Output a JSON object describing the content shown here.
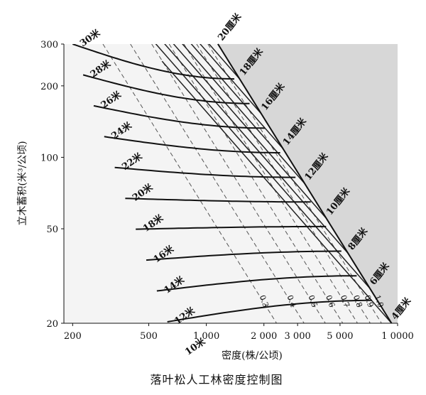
{
  "chart_data": {
    "type": "line",
    "title": "落叶松人工林密度控制图",
    "xlabel": "密度(株/公顷)",
    "ylabel": "立木蓄积(米³/公顷)",
    "xscale": "log",
    "yscale": "log",
    "xlim": [
      180,
      10000
    ],
    "ylim": [
      20,
      300
    ],
    "x_ticks": [
      {
        "value": 200,
        "label": "200"
      },
      {
        "value": 500,
        "label": "500"
      },
      {
        "value": 1000,
        "label": "1 000"
      },
      {
        "value": 2000,
        "label": "2 000"
      },
      {
        "value": 3000,
        "label": "3 000"
      },
      {
        "value": 5000,
        "label": "5 000"
      },
      {
        "value": 10000,
        "label": "1 0000"
      }
    ],
    "y_ticks": [
      {
        "value": 20,
        "label": "20"
      },
      {
        "value": 50,
        "label": "50"
      },
      {
        "value": 100,
        "label": "100"
      },
      {
        "value": 200,
        "label": "200"
      },
      {
        "value": 300,
        "label": "300"
      }
    ],
    "height_curves": [
      {
        "label": "30米",
        "H": 30
      },
      {
        "label": "28米",
        "H": 28
      },
      {
        "label": "26米",
        "H": 26
      },
      {
        "label": "24米",
        "H": 24
      },
      {
        "label": "22米",
        "H": 22
      },
      {
        "label": "20米",
        "H": 20
      },
      {
        "label": "18米",
        "H": 18
      },
      {
        "label": "16米",
        "H": 16
      },
      {
        "label": "14米",
        "H": 14
      },
      {
        "label": "12米",
        "H": 12
      },
      {
        "label": "10米",
        "H": 10
      }
    ],
    "diameter_lines": [
      {
        "label": "20厘米",
        "D": 20
      },
      {
        "label": "18厘米",
        "D": 18
      },
      {
        "label": "16厘米",
        "D": 16
      },
      {
        "label": "14厘米",
        "D": 14
      },
      {
        "label": "12厘米",
        "D": 12
      },
      {
        "label": "10厘米",
        "D": 10
      },
      {
        "label": "8厘米",
        "D": 8
      },
      {
        "label": "6厘米",
        "D": 6
      },
      {
        "label": "4厘米",
        "D": 4
      }
    ],
    "density_index_lines": [
      {
        "label": "0.3",
        "R": 0.3
      },
      {
        "label": "0.4",
        "R": 0.4
      },
      {
        "label": "0.5",
        "R": 0.5
      },
      {
        "label": "0.6",
        "R": 0.6
      },
      {
        "label": "0.7",
        "R": 0.7
      },
      {
        "label": "0.8",
        "R": 0.8
      },
      {
        "label": "0.9",
        "R": 0.9
      },
      {
        "label": "1.0",
        "R": 1.0
      }
    ],
    "maximum_density_line": "1.0",
    "grid": false,
    "legend": "none"
  }
}
